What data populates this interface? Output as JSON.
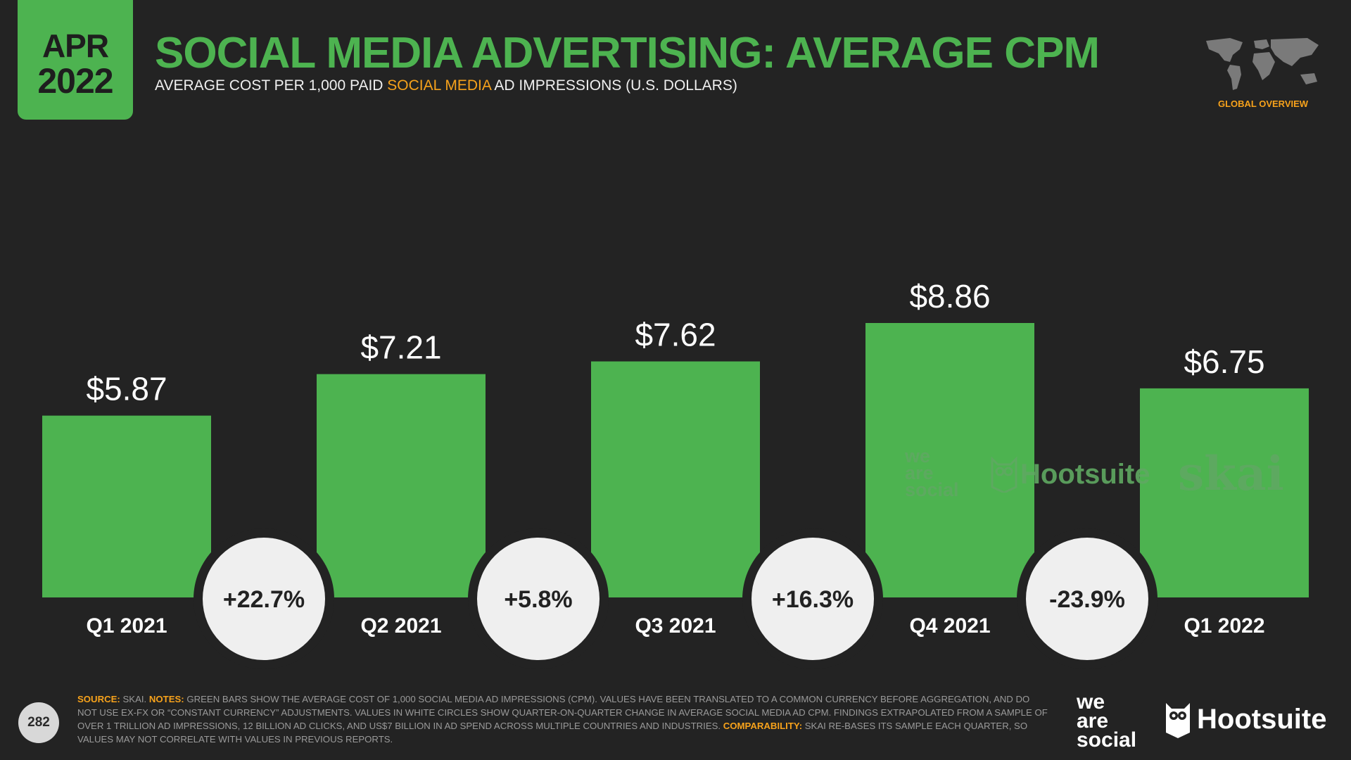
{
  "header": {
    "date_month": "APR",
    "date_year": "2022",
    "title": "SOCIAL MEDIA ADVERTISING: AVERAGE CPM",
    "subtitle_pre": "AVERAGE COST PER 1,000 PAID ",
    "subtitle_highlight": "SOCIAL MEDIA",
    "subtitle_post": " AD IMPRESSIONS (U.S. DOLLARS)",
    "global_overview": "GLOBAL OVERVIEW"
  },
  "chart_data": {
    "type": "bar",
    "categories": [
      "Q1 2021",
      "Q2 2021",
      "Q3 2021",
      "Q4 2021",
      "Q1 2022"
    ],
    "values": [
      5.87,
      7.21,
      7.62,
      8.86,
      6.75
    ],
    "value_labels": [
      "$5.87",
      "$7.21",
      "$7.62",
      "$8.86",
      "$6.75"
    ],
    "changes": [
      "+22.7%",
      "+5.8%",
      "+16.3%",
      "-23.9%"
    ],
    "ylim": [
      0,
      8.86
    ],
    "grid": false,
    "bar_color": "#4db350",
    "circle_color": "#efefef"
  },
  "watermarks": {
    "we_are_social": [
      "we",
      "are",
      "social"
    ],
    "hootsuite": "Hootsuite",
    "skai": "skai"
  },
  "footer": {
    "source_label": "SOURCE:",
    "source_text": " SKAI. ",
    "notes_label": "NOTES:",
    "notes_text": " GREEN BARS SHOW THE AVERAGE COST OF 1,000 SOCIAL MEDIA AD IMPRESSIONS (CPM). VALUES HAVE BEEN TRANSLATED TO A COMMON CURRENCY BEFORE AGGREGATION, AND DO NOT USE EX-FX OR “CONSTANT CURRENCY” ADJUSTMENTS. VALUES IN WHITE CIRCLES SHOW QUARTER-ON-QUARTER CHANGE IN AVERAGE SOCIAL MEDIA AD CPM. FINDINGS EXTRAPOLATED FROM A SAMPLE OF OVER 1 TRILLION AD IMPRESSIONS, 12 BILLION AD CLICKS, AND US$7 BILLION IN AD SPEND ACROSS MULTIPLE COUNTRIES AND INDUSTRIES. ",
    "comparability_label": "COMPARABILITY:",
    "comparability_text": " SKAI RE-BASES ITS SAMPLE EACH QUARTER, SO VALUES MAY NOT CORRELATE WITH VALUES IN PREVIOUS REPORTS.",
    "page_number": "282",
    "logo_we_are_social": [
      "we",
      "are",
      "social"
    ],
    "logo_hootsuite": "Hootsuite"
  },
  "icons": [
    "world-map-icon",
    "owl-icon"
  ]
}
